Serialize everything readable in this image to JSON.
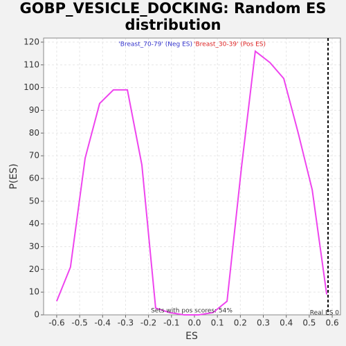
{
  "chart_data": {
    "type": "line",
    "title": "GOBP_VESICLE_DOCKING: Random ES distribution",
    "xlabel": "ES",
    "ylabel": "P(ES)",
    "x": [
      -0.6,
      -0.54,
      -0.476,
      -0.413,
      -0.353,
      -0.292,
      -0.229,
      -0.169,
      -0.108,
      -0.045,
      0.018,
      0.081,
      0.142,
      0.205,
      0.265,
      0.329,
      0.389,
      0.452,
      0.513,
      0.576
    ],
    "series": [
      {
        "name": "'Breast_70-79' (Neg ES)",
        "color": "#3333cc",
        "values": null
      },
      {
        "name": "'Breast_30-39' (Pos ES)",
        "color": "#dd2222",
        "values": [
          6,
          21,
          69,
          93,
          99,
          99,
          66,
          3,
          1,
          0,
          0,
          1,
          6,
          65,
          116,
          111,
          104,
          80,
          55,
          9
        ]
      }
    ],
    "line_color": "#ee44ee",
    "xlim": [
      -0.657,
      0.636
    ],
    "ylim": [
      0,
      121.8
    ],
    "xticks": [
      -0.6,
      -0.5,
      -0.4,
      -0.3,
      -0.2,
      -0.1,
      {
        "value": 0,
        "label": "0.0"
      },
      0.1,
      0.2,
      0.3,
      0.4,
      0.5,
      0.6
    ],
    "yticks": [
      0,
      10,
      20,
      30,
      40,
      50,
      60,
      70,
      80,
      90,
      100,
      110,
      120
    ],
    "grid": true,
    "real_es": 0.582,
    "real_es_label": "Real ES 0",
    "annotation": "Sets with pos scores: 54%"
  }
}
